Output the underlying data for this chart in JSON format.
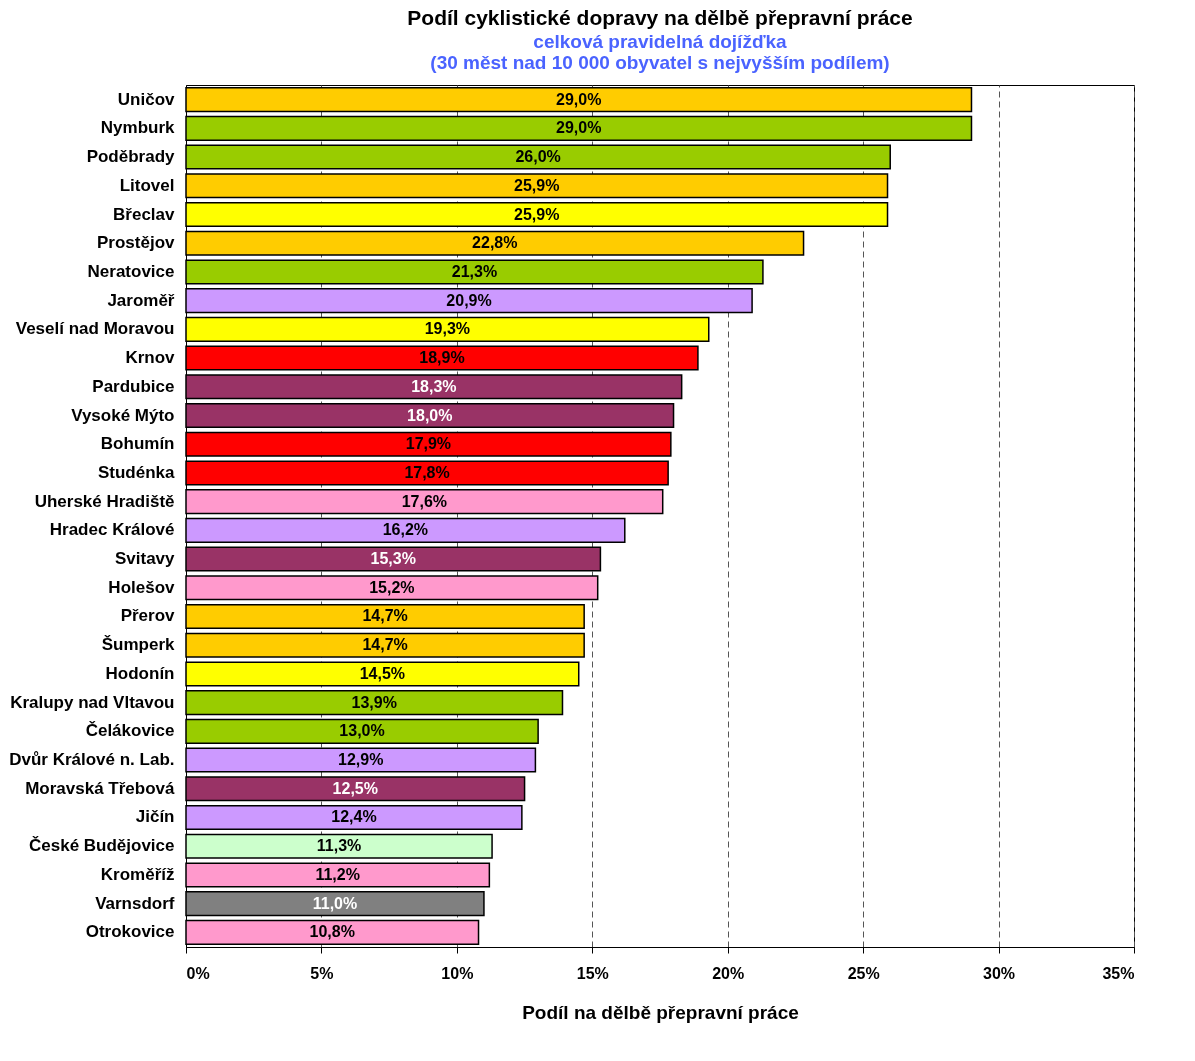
{
  "chart_data": {
    "type": "bar",
    "orientation": "horizontal",
    "title": "Podíl cyklistické dopravy na dělbě přepravní práce",
    "subtitle": "celková pravidelná dojížďka",
    "annotations": [
      "(30 měst nad 10 000 obyvatel s nejvyšším podílem)"
    ],
    "xlabel": "Podíl na dělbě přepravní práce",
    "categories": [
      "Uničov",
      "Nymburk",
      "Poděbrady",
      "Litovel",
      "Břeclav",
      "Prostějov",
      "Neratovice",
      "Jaroměř",
      "Veselí nad Moravou",
      "Krnov",
      "Pardubice",
      "Vysoké Mýto",
      "Bohumín",
      "Studénka",
      "Uherské Hradiště",
      "Hradec Králové",
      "Svitavy",
      "Holešov",
      "Přerov",
      "Šumperk",
      "Hodonín",
      "Kralupy nad Vltavou",
      "Čelákovice",
      "Dvůr Králové n. Lab.",
      "Moravská Třebová",
      "Jičín",
      "České Budějovice",
      "Kroměříž",
      "Varnsdorf",
      "Otrokovice"
    ],
    "values": [
      29.0,
      29.0,
      26.0,
      25.9,
      25.9,
      22.8,
      21.3,
      20.9,
      19.3,
      18.9,
      18.3,
      18.0,
      17.9,
      17.8,
      17.6,
      16.2,
      15.3,
      15.2,
      14.7,
      14.7,
      14.5,
      13.9,
      13.0,
      12.9,
      12.5,
      12.4,
      11.3,
      11.2,
      11.0,
      10.8
    ],
    "value_labels": [
      "29,0%",
      "29,0%",
      "26,0%",
      "25,9%",
      "25,9%",
      "22,8%",
      "21,3%",
      "20,9%",
      "19,3%",
      "18,9%",
      "18,3%",
      "18,0%",
      "17,9%",
      "17,8%",
      "17,6%",
      "16,2%",
      "15,3%",
      "15,2%",
      "14,7%",
      "14,7%",
      "14,5%",
      "13,9%",
      "13,0%",
      "12,9%",
      "12,5%",
      "12,4%",
      "11,3%",
      "11,2%",
      "11,0%",
      "10,8%"
    ],
    "colors": [
      "#ffcc00",
      "#99cc00",
      "#99cc00",
      "#ffcc00",
      "#ffff00",
      "#ffcc00",
      "#99cc00",
      "#cc99ff",
      "#ffff00",
      "#ff0000",
      "#993366",
      "#993366",
      "#ff0000",
      "#ff0000",
      "#ff99cc",
      "#cc99ff",
      "#993366",
      "#ff99cc",
      "#ffcc00",
      "#ffcc00",
      "#ffff00",
      "#99cc00",
      "#99cc00",
      "#cc99ff",
      "#993366",
      "#cc99ff",
      "#ccffcc",
      "#ff99cc",
      "#808080",
      "#ff99cc"
    ],
    "xlim": [
      0,
      35
    ],
    "xticks": [
      {
        "value": 0,
        "label": "0%"
      },
      {
        "value": 5,
        "label": "5%"
      },
      {
        "value": 10,
        "label": "10%"
      },
      {
        "value": 15,
        "label": "15%"
      },
      {
        "value": 20,
        "label": "20%"
      },
      {
        "value": 25,
        "label": "25%"
      },
      {
        "value": 30,
        "label": "30%"
      },
      {
        "value": 35,
        "label": "35%"
      }
    ],
    "grid": "x"
  }
}
